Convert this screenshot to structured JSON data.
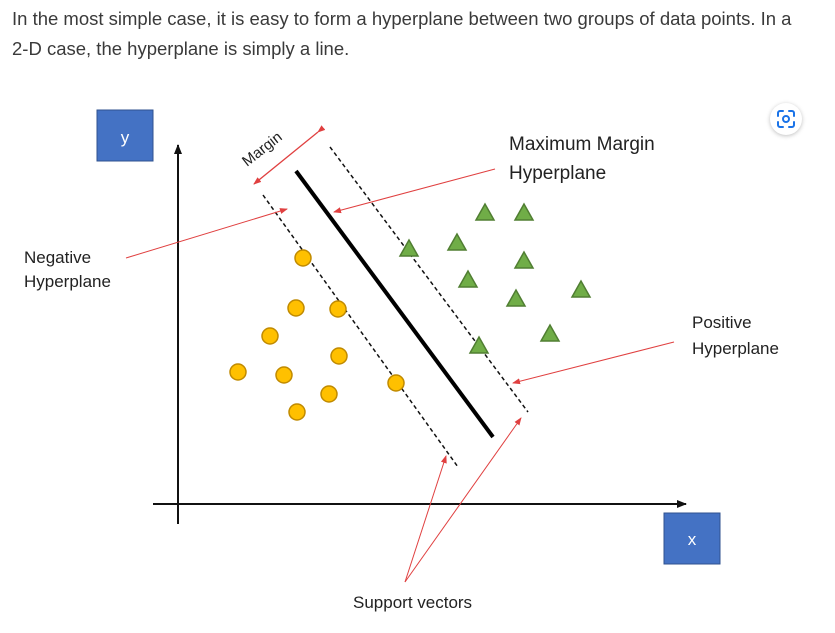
{
  "intro_text": "In the most simple case, it is easy to form a hyperplane between two groups of data points. In a 2-D case, the hyperplane is simply a line.",
  "labels": {
    "y_axis": "y",
    "x_axis": "x",
    "margin": "Margin",
    "max_margin_line1": "Maximum Margin",
    "max_margin_line2": "Hyperplane",
    "negative_line1": "Negative",
    "negative_line2": "Hyperplane",
    "positive_line1": "Positive",
    "positive_line2": "Hyperplane",
    "support_vectors": "Support vectors"
  },
  "colors": {
    "axis_box": "#4472c4",
    "circle_fill": "#ffc000",
    "circle_stroke": "#c08a00",
    "triangle_fill": "#70ad47",
    "triangle_stroke": "#507e32",
    "arrow": "#e04040"
  },
  "icons": {
    "visual_search": "lens-scan-icon"
  }
}
